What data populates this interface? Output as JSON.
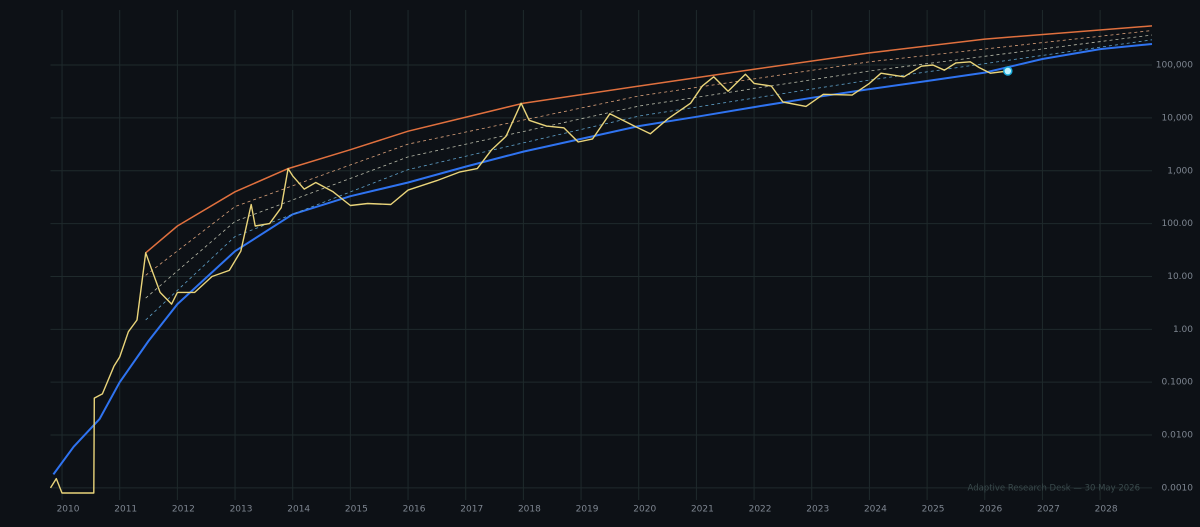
{
  "chart_data": {
    "type": "line",
    "log_y": true,
    "grid": true,
    "background": "#0d1116",
    "annotation": "Adaptive Research Desk — 30 May 2026",
    "xlim": [
      2009.8,
      2028.9
    ],
    "xticks": [
      2010,
      2011,
      2012,
      2013,
      2014,
      2015,
      2016,
      2017,
      2018,
      2019,
      2020,
      2021,
      2022,
      2023,
      2024,
      2025,
      2026,
      2027,
      2028
    ],
    "ylim": [
      0.00059,
      1100000
    ],
    "yticks": [
      {
        "value": 0.001,
        "label": "0.0010"
      },
      {
        "value": 0.01,
        "label": "0.0100"
      },
      {
        "value": 0.1,
        "label": "0.1000"
      },
      {
        "value": 1,
        "label": "1.00"
      },
      {
        "value": 10,
        "label": "10.00"
      },
      {
        "value": 100,
        "label": "100.00"
      },
      {
        "value": 1000,
        "label": "1,000"
      },
      {
        "value": 10000,
        "label": "10,000"
      },
      {
        "value": 100000,
        "label": "100,000"
      }
    ],
    "series": [
      {
        "color": "#2f73f0",
        "width": 2,
        "dash": false,
        "x": [
          2009.85,
          2010.2,
          2010.65,
          2011,
          2011.5,
          2012,
          2013,
          2014,
          2015,
          2016,
          2017,
          2018,
          2019,
          2020,
          2021,
          2022,
          2023,
          2024,
          2025,
          2026,
          2027,
          2028,
          2028.9
        ],
        "values": [
          0.0018,
          0.006,
          0.02,
          0.1,
          0.6,
          3,
          30,
          150,
          330,
          600,
          1200,
          2300,
          4000,
          7000,
          10500,
          16000,
          24000,
          35000,
          50000,
          72000,
          130000,
          200000,
          250000
        ]
      },
      {
        "color": "#5fa0c8",
        "width": 0.8,
        "dash": true,
        "x": [
          2011.45,
          2013,
          2016,
          2020,
          2024,
          2028.9
        ],
        "values": [
          1.5,
          57,
          1050,
          10800,
          52000,
          300000
        ]
      },
      {
        "color": "#b7b9a8",
        "width": 0.8,
        "dash": true,
        "x": [
          2011.45,
          2013,
          2016,
          2020,
          2024,
          2028.9
        ],
        "values": [
          3.9,
          110,
          1830,
          16700,
          77000,
          370000
        ]
      },
      {
        "color": "#d9a07a",
        "width": 0.8,
        "dash": true,
        "x": [
          2011.45,
          2013,
          2016,
          2020,
          2024,
          2028.9
        ],
        "values": [
          10.5,
          210,
          3200,
          26000,
          115000,
          450000
        ]
      },
      {
        "color": "#e0703e",
        "width": 1.5,
        "dash": false,
        "x": [
          2011.45,
          2012,
          2013,
          2013.92,
          2015,
          2016,
          2018,
          2020,
          2022,
          2024,
          2026,
          2028.9
        ],
        "values": [
          28,
          90,
          400,
          1100,
          2500,
          5600,
          19000,
          40000,
          83000,
          170000,
          310000,
          550000
        ]
      },
      {
        "color": "#e9d47a",
        "width": 1.4,
        "dash": false,
        "end_marker": true,
        "x": [
          2009.8,
          2009.9,
          2010.0,
          2010.55,
          2010.56,
          2010.7,
          2010.9,
          2011.0,
          2011.15,
          2011.3,
          2011.45,
          2011.55,
          2011.7,
          2011.9,
          2012.0,
          2012.3,
          2012.6,
          2012.9,
          2013.1,
          2013.28,
          2013.35,
          2013.6,
          2013.8,
          2013.92,
          2014.0,
          2014.2,
          2014.4,
          2014.7,
          2015.0,
          2015.3,
          2015.7,
          2016.0,
          2016.5,
          2016.9,
          2017.2,
          2017.45,
          2017.7,
          2017.96,
          2018.1,
          2018.4,
          2018.7,
          2018.95,
          2019.2,
          2019.5,
          2019.9,
          2020.2,
          2020.5,
          2020.9,
          2021.1,
          2021.3,
          2021.55,
          2021.85,
          2022.0,
          2022.3,
          2022.5,
          2022.9,
          2023.2,
          2023.7,
          2024.0,
          2024.2,
          2024.6,
          2024.9,
          2025.1,
          2025.3,
          2025.5,
          2025.75,
          2025.9,
          2026.1,
          2026.4
        ],
        "values": [
          0.001,
          0.0015,
          0.0008,
          0.0008,
          0.05,
          0.06,
          0.2,
          0.3,
          0.9,
          1.5,
          28,
          14,
          5,
          3,
          5,
          5,
          10,
          13,
          30,
          230,
          90,
          100,
          200,
          1100,
          800,
          450,
          600,
          400,
          220,
          240,
          230,
          430,
          650,
          950,
          1100,
          2500,
          4500,
          19000,
          9000,
          7000,
          6500,
          3500,
          4000,
          12000,
          7200,
          5000,
          9500,
          19000,
          40000,
          60000,
          32000,
          67000,
          45000,
          40000,
          20000,
          16500,
          28000,
          27000,
          45000,
          70000,
          60000,
          95000,
          100000,
          80000,
          110000,
          115000,
          90000,
          70000,
          77000
        ]
      }
    ]
  }
}
